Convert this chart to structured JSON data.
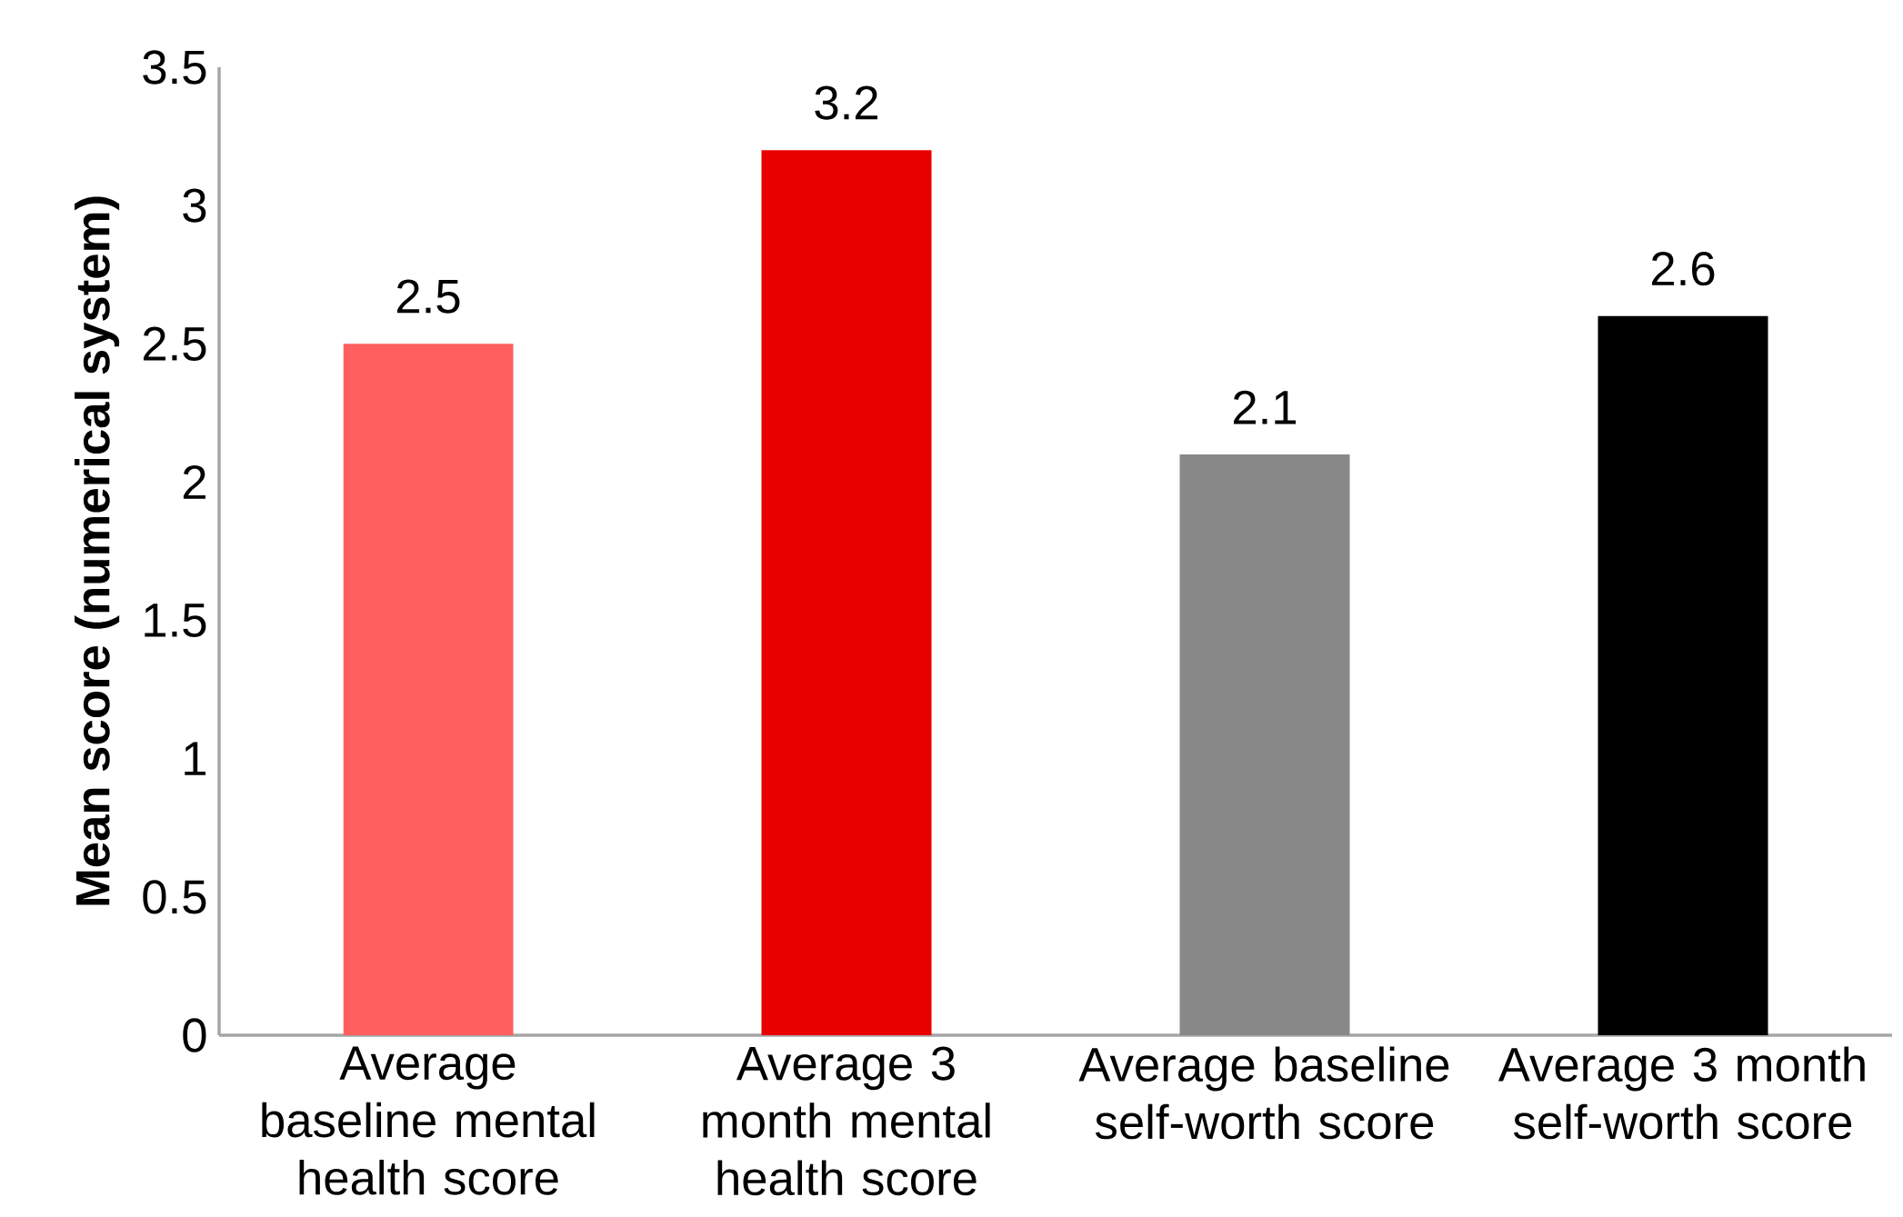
{
  "chart_data": {
    "type": "bar",
    "ylabel": "Mean score (numerical system)",
    "categories": [
      "Average baseline mental health score",
      "Average 3 month mental health score",
      "Average baseline self-worth score",
      "Average 3 month self-worth score"
    ],
    "values": [
      2.5,
      3.2,
      2.1,
      2.6
    ],
    "colors": [
      "#ff5f5f",
      "#e80000",
      "#888888",
      "#000000"
    ],
    "ylim": [
      0,
      3.5
    ],
    "yticks": [
      0,
      0.5,
      1,
      1.5,
      2,
      2.5,
      3,
      3.5
    ],
    "data_labels": true
  }
}
